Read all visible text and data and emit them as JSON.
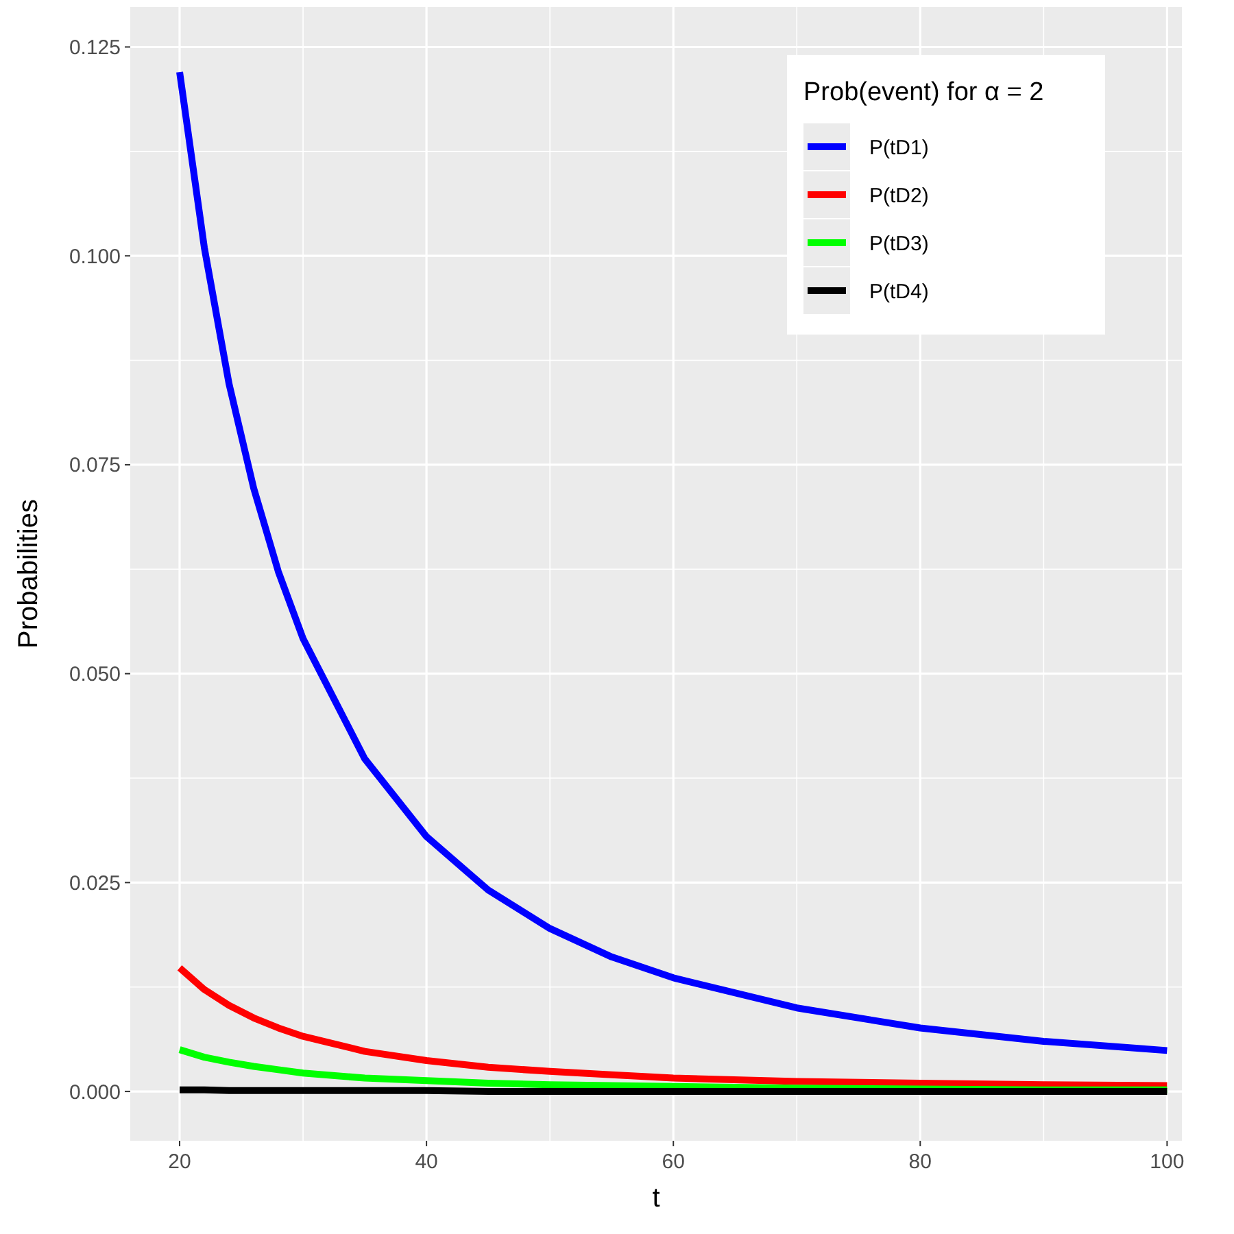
{
  "chart_data": {
    "type": "line",
    "xlabel": "t",
    "ylabel": "Probabilities",
    "legend_title": "Prob(event) for α = 2",
    "x": [
      20,
      22,
      24,
      26,
      28,
      30,
      35,
      40,
      45,
      50,
      55,
      60,
      70,
      80,
      90,
      100
    ],
    "series": [
      {
        "name": "P(tD1)",
        "color": "#0000ff",
        "values": [
          0.122,
          0.101,
          0.0847,
          0.0722,
          0.0622,
          0.0542,
          0.0398,
          0.0305,
          0.0241,
          0.0195,
          0.0161,
          0.0136,
          0.01,
          0.0076,
          0.006,
          0.0049
        ]
      },
      {
        "name": "P(tD2)",
        "color": "#ff0000",
        "values": [
          0.0148,
          0.0122,
          0.0103,
          0.0088,
          0.0076,
          0.0066,
          0.0048,
          0.0037,
          0.0029,
          0.0024,
          0.002,
          0.0016,
          0.0012,
          0.001,
          0.0008,
          0.0007
        ]
      },
      {
        "name": "P(tD3)",
        "color": "#00ff00",
        "values": [
          0.005,
          0.0041,
          0.0035,
          0.003,
          0.0026,
          0.0022,
          0.0016,
          0.0013,
          0.001,
          0.0008,
          0.0007,
          0.0006,
          0.0004,
          0.0003,
          0.0002,
          0.0002
        ]
      },
      {
        "name": "P(tD4)",
        "color": "#000000",
        "values": [
          0.0002,
          0.0002,
          0.0001,
          0.0001,
          0.0001,
          0.0001,
          0.0001,
          0.0001,
          0.0,
          0.0,
          0.0,
          0.0,
          0.0,
          0.0,
          0.0,
          0.0
        ]
      }
    ],
    "xlim": [
      16,
      101.2
    ],
    "ylim": [
      -0.0059,
      0.1298
    ],
    "xticks": [
      20,
      40,
      60,
      80,
      100
    ],
    "yticks": [
      {
        "value": 0,
        "label": "0.000"
      },
      {
        "value": 0.025,
        "label": "0.025"
      },
      {
        "value": 0.05,
        "label": "0.050"
      },
      {
        "value": 0.075,
        "label": "0.075"
      },
      {
        "value": 0.1,
        "label": "0.100"
      },
      {
        "value": 0.125,
        "label": "0.125"
      }
    ],
    "grid": true,
    "legend": "top right",
    "line_style": "solid",
    "marker": "none"
  }
}
